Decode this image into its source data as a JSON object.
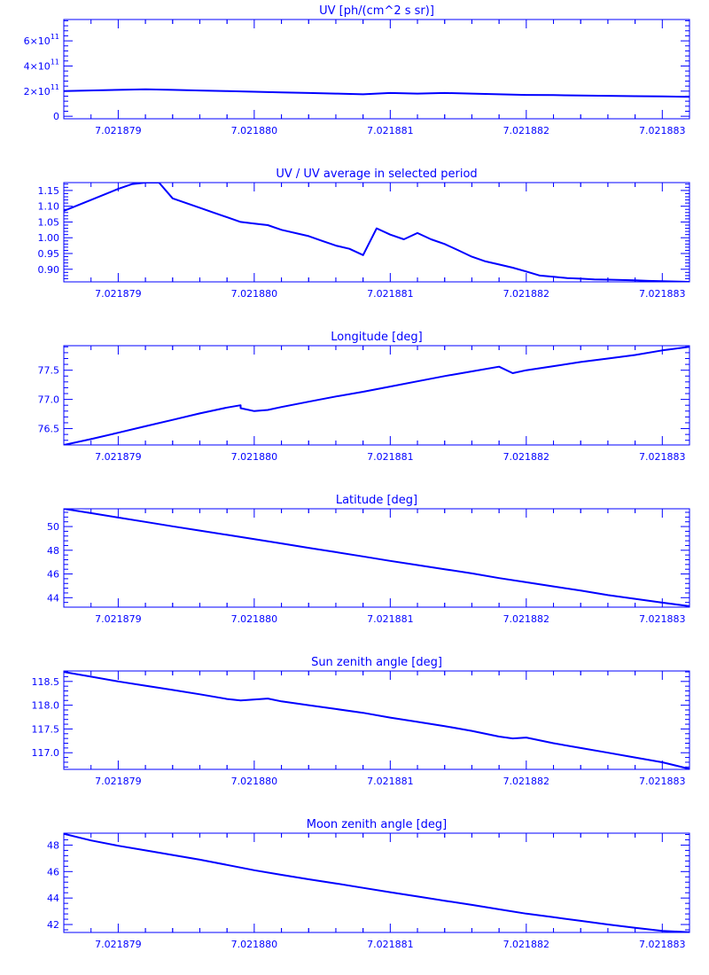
{
  "colors": {
    "ink": "#0000ff",
    "background": "#ffffff"
  },
  "chart_data": [
    {
      "type": "line",
      "title": "UV [ph/(cm^2 s sr)]",
      "xlim": [
        7.0218786,
        7.0218832
      ],
      "ylim": [
        -20000000000,
        770000000000
      ],
      "yticks": [
        {
          "value": 0,
          "label": "0"
        },
        {
          "value": 200000000000,
          "mantissa": "2×10",
          "exponent": "11"
        },
        {
          "value": 400000000000,
          "mantissa": "4×10",
          "exponent": "11"
        },
        {
          "value": 600000000000,
          "mantissa": "6×10",
          "exponent": "11"
        }
      ],
      "xtick_labels": [
        "7.021879",
        "7.021880",
        "7.021881",
        "7.021882",
        "7.021883"
      ],
      "x": [
        7.0218786,
        7.021879,
        7.0218792,
        7.0218794,
        7.0218796,
        7.0218798,
        7.02188,
        7.0218802,
        7.0218804,
        7.0218806,
        7.0218808,
        7.021881,
        7.0218812,
        7.0218814,
        7.0218816,
        7.0218818,
        7.021882,
        7.0218822,
        7.0218824,
        7.0218826,
        7.0218828,
        7.021883,
        7.0218832
      ],
      "y": [
        200000000000,
        210000000000,
        215000000000,
        210000000000,
        205000000000,
        200000000000,
        195000000000,
        190000000000,
        185000000000,
        180000000000,
        175000000000,
        185000000000,
        180000000000,
        185000000000,
        180000000000,
        175000000000,
        170000000000,
        168000000000,
        165000000000,
        163000000000,
        160000000000,
        158000000000,
        155000000000
      ]
    },
    {
      "type": "line",
      "title": "UV / UV average in selected period",
      "xlim": [
        7.0218786,
        7.0218832
      ],
      "ylim": [
        0.86,
        1.175
      ],
      "yticks": [
        {
          "value": 0.9,
          "label": "0.90"
        },
        {
          "value": 0.95,
          "label": "0.95"
        },
        {
          "value": 1.0,
          "label": "1.00"
        },
        {
          "value": 1.05,
          "label": "1.05"
        },
        {
          "value": 1.1,
          "label": "1.10"
        },
        {
          "value": 1.15,
          "label": "1.15"
        }
      ],
      "xtick_labels": [
        "7.021879",
        "7.021880",
        "7.021881",
        "7.021882",
        "7.021883"
      ],
      "x": [
        7.0218786,
        7.0218788,
        7.021879,
        7.0218791,
        7.0218792,
        7.0218793,
        7.0218794,
        7.0218796,
        7.0218797,
        7.0218798,
        7.0218799,
        7.02188,
        7.0218801,
        7.0218802,
        7.0218804,
        7.0218805,
        7.0218806,
        7.0218807,
        7.0218808,
        7.0218809,
        7.021881,
        7.0218811,
        7.0218812,
        7.0218813,
        7.0218814,
        7.0218815,
        7.0218816,
        7.0218817,
        7.0218818,
        7.0218819,
        7.021882,
        7.0218821,
        7.0218822,
        7.0218823,
        7.0218824,
        7.0218825,
        7.0218826,
        7.0218827,
        7.0218828,
        7.0218829,
        7.021883,
        7.0218831,
        7.0218832
      ],
      "y": [
        1.085,
        1.12,
        1.155,
        1.17,
        1.175,
        1.175,
        1.125,
        1.095,
        1.08,
        1.065,
        1.05,
        1.045,
        1.04,
        1.025,
        1.005,
        0.99,
        0.975,
        0.965,
        0.945,
        1.03,
        1.01,
        0.995,
        1.015,
        0.995,
        0.98,
        0.96,
        0.94,
        0.925,
        0.915,
        0.905,
        0.893,
        0.88,
        0.876,
        0.872,
        0.87,
        0.868,
        0.867,
        0.866,
        0.865,
        0.863,
        0.862,
        0.861,
        0.86
      ]
    },
    {
      "type": "line",
      "title": "Longitude [deg]",
      "xlim": [
        7.0218786,
        7.0218832
      ],
      "ylim": [
        76.22,
        77.92
      ],
      "yticks": [
        {
          "value": 76.5,
          "label": "76.5"
        },
        {
          "value": 77.0,
          "label": "77.0"
        },
        {
          "value": 77.5,
          "label": "77.5"
        }
      ],
      "xtick_labels": [
        "7.021879",
        "7.021880",
        "7.021881",
        "7.021882",
        "7.021883"
      ],
      "x": [
        7.0218786,
        7.0218788,
        7.021879,
        7.0218792,
        7.0218794,
        7.0218796,
        7.0218798,
        7.0218799,
        7.0218799,
        7.02188,
        7.0218801,
        7.0218802,
        7.0218804,
        7.0218806,
        7.0218808,
        7.021881,
        7.0218812,
        7.0218814,
        7.0218816,
        7.0218818,
        7.0218819,
        7.021882,
        7.0218822,
        7.0218824,
        7.0218826,
        7.0218828,
        7.021883,
        7.0218832
      ],
      "y": [
        76.22,
        76.32,
        76.43,
        76.54,
        76.65,
        76.76,
        76.86,
        76.9,
        76.85,
        76.8,
        76.82,
        76.87,
        76.96,
        77.05,
        77.13,
        77.22,
        77.31,
        77.4,
        77.48,
        77.56,
        77.45,
        77.5,
        77.57,
        77.64,
        77.7,
        77.76,
        77.84,
        77.9
      ]
    },
    {
      "type": "line",
      "title": "Latitude [deg]",
      "xlim": [
        7.0218786,
        7.0218832
      ],
      "ylim": [
        43.2,
        51.5
      ],
      "yticks": [
        {
          "value": 44,
          "label": "44"
        },
        {
          "value": 46,
          "label": "46"
        },
        {
          "value": 48,
          "label": "48"
        },
        {
          "value": 50,
          "label": "50"
        }
      ],
      "xtick_labels": [
        "7.021879",
        "7.021880",
        "7.021881",
        "7.021882",
        "7.021883"
      ],
      "x": [
        7.0218786,
        7.0218788,
        7.021879,
        7.0218792,
        7.0218794,
        7.0218796,
        7.0218798,
        7.02188,
        7.0218802,
        7.0218804,
        7.0218806,
        7.0218808,
        7.021881,
        7.0218812,
        7.0218814,
        7.0218816,
        7.0218818,
        7.021882,
        7.0218822,
        7.0218824,
        7.0218826,
        7.0218828,
        7.021883,
        7.0218832
      ],
      "y": [
        51.5,
        51.13,
        50.76,
        50.39,
        50.02,
        49.66,
        49.3,
        48.94,
        48.58,
        48.2,
        47.84,
        47.48,
        47.1,
        46.75,
        46.4,
        46.05,
        45.65,
        45.3,
        44.95,
        44.6,
        44.22,
        43.9,
        43.58,
        43.28
      ]
    },
    {
      "type": "line",
      "title": "Sun zenith angle [deg]",
      "xlim": [
        7.0218786,
        7.0218832
      ],
      "ylim": [
        116.65,
        118.72
      ],
      "yticks": [
        {
          "value": 117.0,
          "label": "117.0"
        },
        {
          "value": 117.5,
          "label": "117.5"
        },
        {
          "value": 118.0,
          "label": "118.0"
        },
        {
          "value": 118.5,
          "label": "118.5"
        }
      ],
      "xtick_labels": [
        "7.021879",
        "7.021880",
        "7.021881",
        "7.021882",
        "7.021883"
      ],
      "x": [
        7.0218786,
        7.0218788,
        7.021879,
        7.0218792,
        7.0218794,
        7.0218796,
        7.0218798,
        7.0218799,
        7.0218801,
        7.0218802,
        7.0218804,
        7.0218806,
        7.0218808,
        7.021881,
        7.0218812,
        7.0218814,
        7.0218816,
        7.0218818,
        7.0218819,
        7.021882,
        7.0218822,
        7.0218824,
        7.0218826,
        7.0218828,
        7.021883,
        7.0218832
      ],
      "y": [
        118.7,
        118.6,
        118.5,
        118.41,
        118.32,
        118.23,
        118.13,
        118.1,
        118.14,
        118.08,
        118.0,
        117.92,
        117.84,
        117.74,
        117.65,
        117.56,
        117.46,
        117.34,
        117.3,
        117.32,
        117.2,
        117.1,
        117.0,
        116.9,
        116.8,
        116.66
      ]
    },
    {
      "type": "line",
      "title": "Moon zenith angle [deg]",
      "xlim": [
        7.0218786,
        7.0218832
      ],
      "ylim": [
        41.4,
        48.9
      ],
      "yticks": [
        {
          "value": 42,
          "label": "42"
        },
        {
          "value": 44,
          "label": "44"
        },
        {
          "value": 46,
          "label": "46"
        },
        {
          "value": 48,
          "label": "48"
        }
      ],
      "xtick_labels": [
        "7.021879",
        "7.021880",
        "7.021881",
        "7.021882",
        "7.021883"
      ],
      "x": [
        7.0218786,
        7.0218788,
        7.021879,
        7.0218792,
        7.0218794,
        7.0218796,
        7.0218798,
        7.02188,
        7.0218802,
        7.0218804,
        7.0218806,
        7.0218808,
        7.021881,
        7.0218812,
        7.0218814,
        7.0218816,
        7.0218818,
        7.021882,
        7.0218822,
        7.0218824,
        7.0218826,
        7.0218828,
        7.021883,
        7.0218832
      ],
      "y": [
        48.85,
        48.35,
        47.95,
        47.6,
        47.25,
        46.9,
        46.5,
        46.1,
        45.75,
        45.42,
        45.1,
        44.77,
        44.44,
        44.12,
        43.8,
        43.48,
        43.15,
        42.82,
        42.55,
        42.28,
        42.0,
        41.75,
        41.52,
        41.42
      ]
    }
  ]
}
